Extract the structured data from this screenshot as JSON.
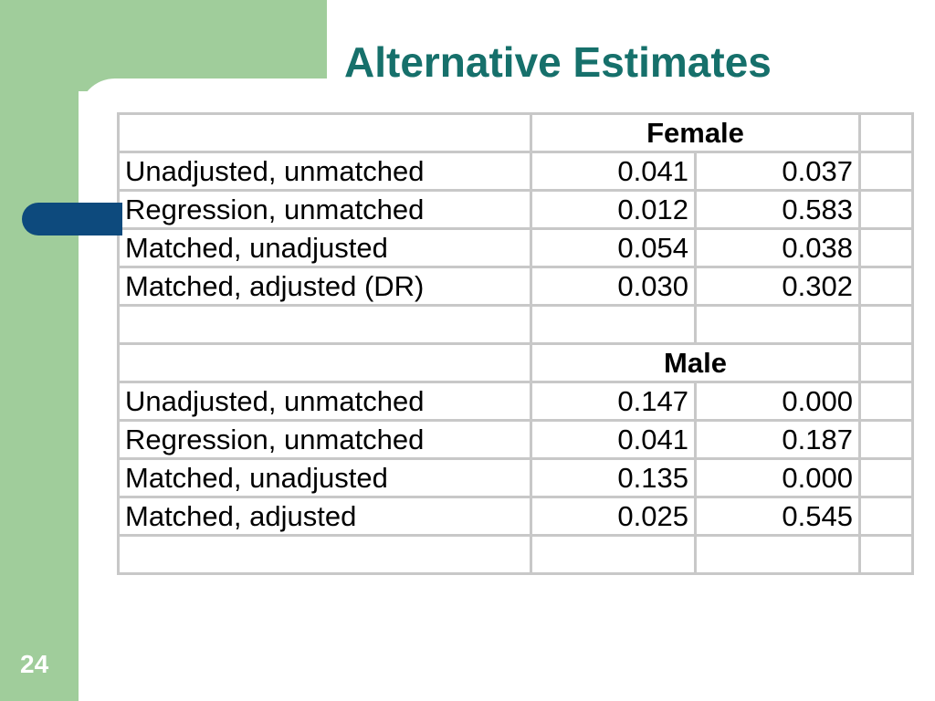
{
  "slide": {
    "title": "Alternative Estimates",
    "number": "24"
  },
  "table": {
    "female_header": "Female",
    "female_rows": [
      {
        "label": "Unadjusted, unmatched",
        "v1": "0.041",
        "v2": "0.037"
      },
      {
        "label": "Regression, unmatched",
        "v1": "0.012",
        "v2": "0.583"
      },
      {
        "label": "Matched, unadjusted",
        "v1": "0.054",
        "v2": "0.038"
      },
      {
        "label": "Matched, adjusted (DR)",
        "v1": "0.030",
        "v2": "0.302"
      }
    ],
    "male_header": "Male",
    "male_rows": [
      {
        "label": "Unadjusted, unmatched",
        "v1": "0.147",
        "v2": "0.000"
      },
      {
        "label": "Regression, unmatched",
        "v1": "0.041",
        "v2": "0.187"
      },
      {
        "label": "Matched, unadjusted",
        "v1": "0.135",
        "v2": "0.000"
      },
      {
        "label": "Matched, adjusted",
        "v1": "0.025",
        "v2": "0.545"
      }
    ]
  },
  "colors": {
    "sidebar_green": "#a0cd9b",
    "title_teal": "#16706b",
    "accent_blue": "#0d4a7d",
    "grid_gray": "#c8c8c8"
  }
}
